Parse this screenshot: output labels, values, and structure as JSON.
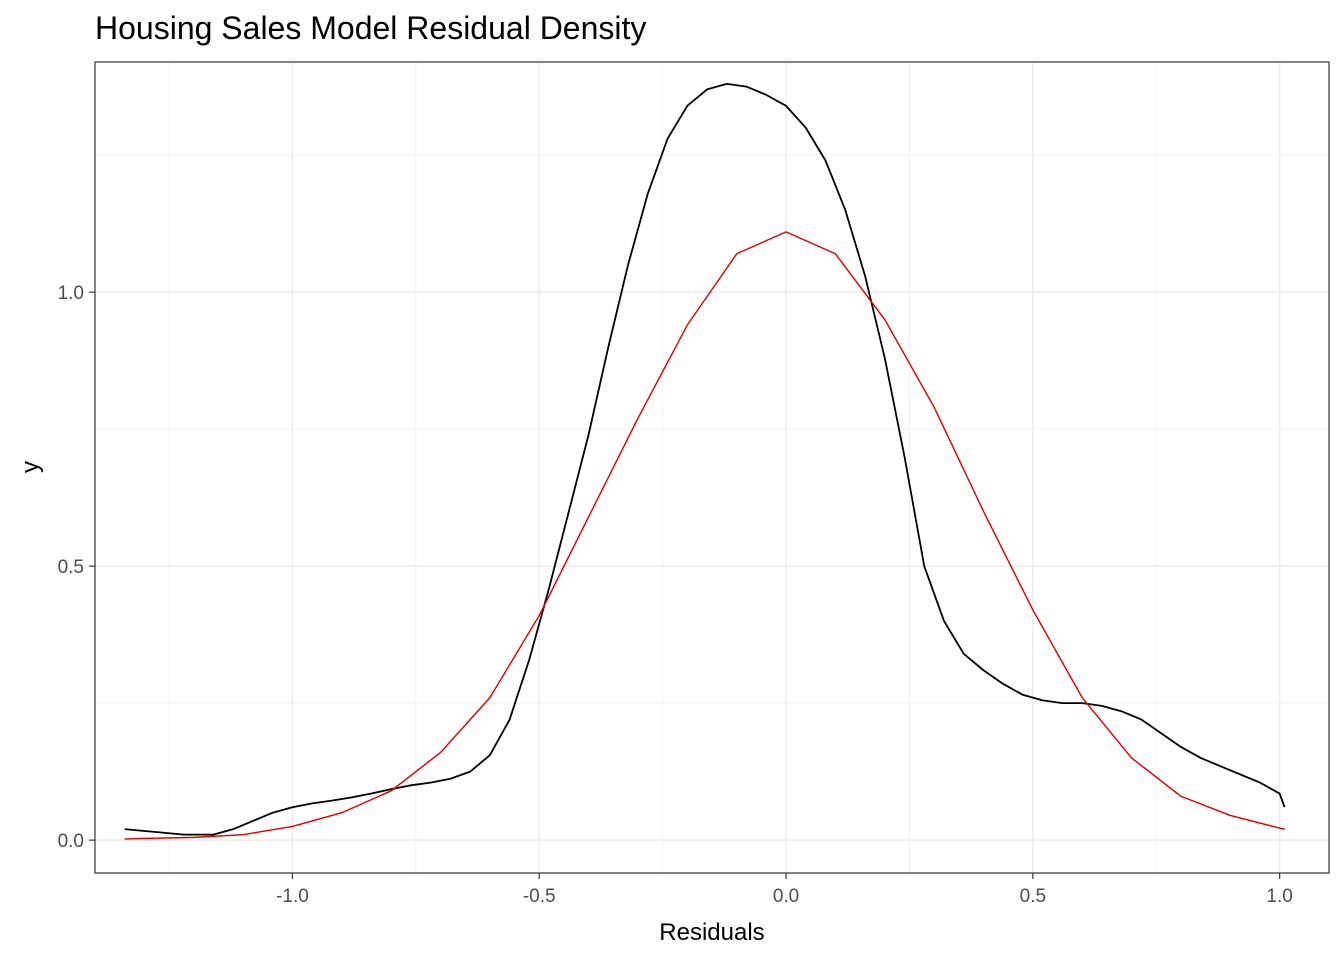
{
  "chart_data": {
    "type": "line",
    "title": "Housing Sales Model Residual Density",
    "xlabel": "Residuals",
    "ylabel": "y",
    "xlim": [
      -1.4,
      1.1
    ],
    "ylim": [
      -0.06,
      1.42
    ],
    "x_ticks": [
      "-1.0",
      "-0.5",
      "0.0",
      "0.5",
      "1.0"
    ],
    "y_ticks": [
      "0.0",
      "0.5",
      "1.0"
    ],
    "grid": true,
    "legend": "none",
    "series": [
      {
        "color": "#000000",
        "x": [
          -1.34,
          -1.28,
          -1.22,
          -1.16,
          -1.12,
          -1.08,
          -1.04,
          -1.0,
          -0.96,
          -0.92,
          -0.88,
          -0.84,
          -0.8,
          -0.76,
          -0.72,
          -0.68,
          -0.64,
          -0.6,
          -0.56,
          -0.52,
          -0.48,
          -0.44,
          -0.4,
          -0.36,
          -0.32,
          -0.28,
          -0.24,
          -0.2,
          -0.16,
          -0.12,
          -0.08,
          -0.04,
          -0.02,
          0.0,
          0.04,
          0.08,
          0.12,
          0.16,
          0.2,
          0.24,
          0.28,
          0.32,
          0.36,
          0.4,
          0.44,
          0.48,
          0.52,
          0.56,
          0.6,
          0.64,
          0.68,
          0.72,
          0.76,
          0.8,
          0.84,
          0.88,
          0.92,
          0.96,
          1.0,
          1.01
        ],
        "y": [
          0.02,
          0.015,
          0.01,
          0.01,
          0.02,
          0.035,
          0.05,
          0.06,
          0.067,
          0.072,
          0.078,
          0.085,
          0.093,
          0.1,
          0.105,
          0.112,
          0.125,
          0.155,
          0.22,
          0.33,
          0.46,
          0.6,
          0.74,
          0.9,
          1.05,
          1.18,
          1.28,
          1.34,
          1.37,
          1.38,
          1.375,
          1.36,
          1.35,
          1.34,
          1.3,
          1.24,
          1.15,
          1.03,
          0.88,
          0.7,
          0.5,
          0.4,
          0.34,
          0.31,
          0.285,
          0.265,
          0.255,
          0.25,
          0.25,
          0.245,
          0.235,
          0.22,
          0.195,
          0.17,
          0.15,
          0.135,
          0.12,
          0.105,
          0.085,
          0.06
        ]
      },
      {
        "color": "#dd0000",
        "x": [
          -1.34,
          -1.3,
          -1.2,
          -1.1,
          -1.0,
          -0.9,
          -0.8,
          -0.7,
          -0.6,
          -0.5,
          -0.4,
          -0.3,
          -0.2,
          -0.1,
          0.0,
          0.1,
          0.2,
          0.3,
          0.4,
          0.5,
          0.6,
          0.7,
          0.8,
          0.9,
          1.0,
          1.01
        ],
        "y": [
          0.002,
          0.003,
          0.005,
          0.01,
          0.025,
          0.05,
          0.09,
          0.16,
          0.26,
          0.41,
          0.59,
          0.77,
          0.94,
          1.07,
          1.11,
          1.07,
          0.95,
          0.79,
          0.6,
          0.42,
          0.26,
          0.15,
          0.08,
          0.045,
          0.022,
          0.02
        ]
      }
    ]
  }
}
